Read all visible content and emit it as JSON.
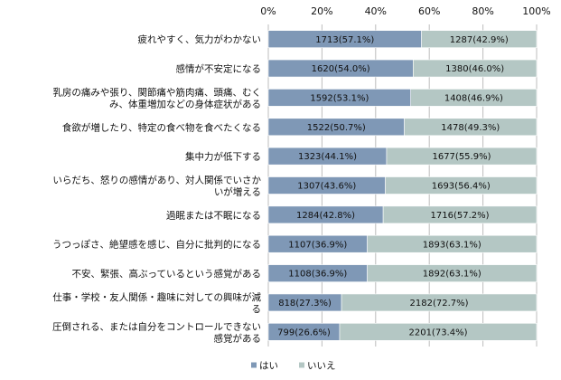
{
  "chart_data": {
    "type": "bar",
    "orientation": "horizontal",
    "stacked": true,
    "percent": true,
    "title": "",
    "xlabel": "",
    "ylabel": "",
    "xlim": [
      0,
      100
    ],
    "x_ticks": [
      "0%",
      "20%",
      "40%",
      "60%",
      "80%",
      "100%"
    ],
    "x_axis_position": "top",
    "grid": true,
    "legend_position": "bottom",
    "categories": [
      [
        "疲れやすく、気力がわかない"
      ],
      [
        "感情が不安定になる"
      ],
      [
        "乳房の痛みや張り、関節痛や筋肉痛、頭痛、むく",
        "み、体重増加などの身体症状がある"
      ],
      [
        "食欲が増したり、特定の食べ物を食べたくなる"
      ],
      [
        "集中力が低下する"
      ],
      [
        "いらだち、怒りの感情があり、対人関係でいさか",
        "いが増える"
      ],
      [
        "過眠または不眠になる"
      ],
      [
        "うつっぽさ、絶望感を感じ、自分に批判的になる"
      ],
      [
        "不安、緊張、高ぶっているという感覚がある"
      ],
      [
        "仕事・学校・友人関係・趣味に対しての興味が減",
        "る"
      ],
      [
        "圧倒される、または自分をコントロールできない",
        "感覚がある"
      ]
    ],
    "series": [
      {
        "name": "はい",
        "color": "#7f98b6",
        "values": [
          57.1,
          54.0,
          53.1,
          50.7,
          44.1,
          43.6,
          42.8,
          36.9,
          36.9,
          27.3,
          26.6
        ],
        "labels": [
          "1713(57.1%)",
          "1620(54.0%)",
          "1592(53.1%)",
          "1522(50.7%)",
          "1323(44.1%)",
          "1307(43.6%)",
          "1284(42.8%)",
          "1107(36.9%)",
          "1108(36.9%)",
          "818(27.3%)",
          "799(26.6%)"
        ]
      },
      {
        "name": "いいえ",
        "color": "#b4c7c4",
        "values": [
          42.9,
          46.0,
          46.9,
          49.3,
          55.9,
          56.4,
          57.2,
          63.1,
          63.1,
          72.7,
          73.4
        ],
        "labels": [
          "1287(42.9%)",
          "1380(46.0%)",
          "1408(46.9%)",
          "1478(49.3%)",
          "1677(55.9%)",
          "1693(56.4%)",
          "1716(57.2%)",
          "1893(63.1%)",
          "1892(63.1%)",
          "2182(72.7%)",
          "2201(73.4%)"
        ]
      }
    ]
  }
}
